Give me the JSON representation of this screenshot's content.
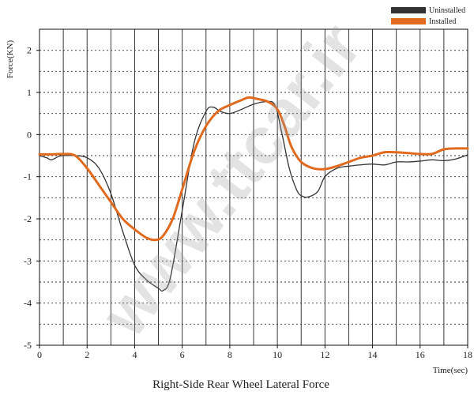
{
  "watermark": "www.ttcar.ir",
  "chart_data": {
    "type": "line",
    "title": "Right-Side Rear Wheel Lateral Force",
    "xlabel": "Time(sec)",
    "ylabel": "Force(KN)",
    "xlim": [
      0,
      18
    ],
    "ylim": [
      -5,
      2.5
    ],
    "xticks": [
      0,
      2,
      4,
      6,
      8,
      10,
      12,
      14,
      16,
      18
    ],
    "yticks": [
      2,
      1,
      0,
      -1,
      -2,
      -3,
      -4,
      -5
    ],
    "grid": true,
    "legend_position": "top-right",
    "series": [
      {
        "name": "Uninstalled",
        "color": "#333333",
        "x": [
          0,
          0.3,
          0.5,
          0.8,
          1.0,
          1.5,
          2.0,
          2.5,
          3.0,
          3.5,
          4.0,
          4.5,
          5.0,
          5.2,
          5.5,
          6.0,
          6.5,
          7.0,
          7.3,
          7.6,
          8.0,
          8.5,
          9.0,
          9.5,
          9.9,
          10.2,
          10.5,
          10.8,
          11.0,
          11.3,
          11.7,
          12.0,
          12.5,
          13.0,
          13.5,
          14.0,
          14.5,
          15.0,
          15.5,
          16.0,
          16.5,
          17.0,
          17.5,
          18.0
        ],
        "y": [
          -0.5,
          -0.55,
          -0.6,
          -0.52,
          -0.5,
          -0.5,
          -0.55,
          -0.8,
          -1.4,
          -2.3,
          -3.1,
          -3.45,
          -3.65,
          -3.7,
          -3.4,
          -1.8,
          -0.2,
          0.55,
          0.65,
          0.55,
          0.5,
          0.6,
          0.72,
          0.78,
          0.7,
          0.0,
          -0.8,
          -1.3,
          -1.45,
          -1.48,
          -1.35,
          -1.0,
          -0.8,
          -0.75,
          -0.72,
          -0.7,
          -0.72,
          -0.65,
          -0.65,
          -0.63,
          -0.6,
          -0.62,
          -0.58,
          -0.48
        ]
      },
      {
        "name": "Installed",
        "color": "#e06a1e",
        "x": [
          0,
          0.5,
          1.0,
          1.5,
          2.0,
          2.5,
          3.0,
          3.5,
          4.0,
          4.5,
          4.9,
          5.2,
          5.6,
          6.0,
          6.5,
          7.0,
          7.5,
          8.0,
          8.5,
          8.8,
          9.2,
          9.6,
          10.0,
          10.3,
          10.6,
          11.0,
          11.5,
          12.0,
          12.5,
          13.0,
          13.5,
          14.0,
          14.5,
          15.0,
          15.5,
          16.0,
          16.5,
          17.0,
          17.5,
          18.0
        ],
        "y": [
          -0.47,
          -0.47,
          -0.46,
          -0.5,
          -0.8,
          -1.2,
          -1.6,
          -2.0,
          -2.25,
          -2.45,
          -2.5,
          -2.4,
          -2.0,
          -1.3,
          -0.4,
          0.2,
          0.55,
          0.7,
          0.82,
          0.88,
          0.84,
          0.78,
          0.6,
          0.2,
          -0.3,
          -0.65,
          -0.8,
          -0.82,
          -0.75,
          -0.65,
          -0.55,
          -0.5,
          -0.42,
          -0.42,
          -0.44,
          -0.46,
          -0.46,
          -0.35,
          -0.33,
          -0.33
        ]
      }
    ]
  }
}
